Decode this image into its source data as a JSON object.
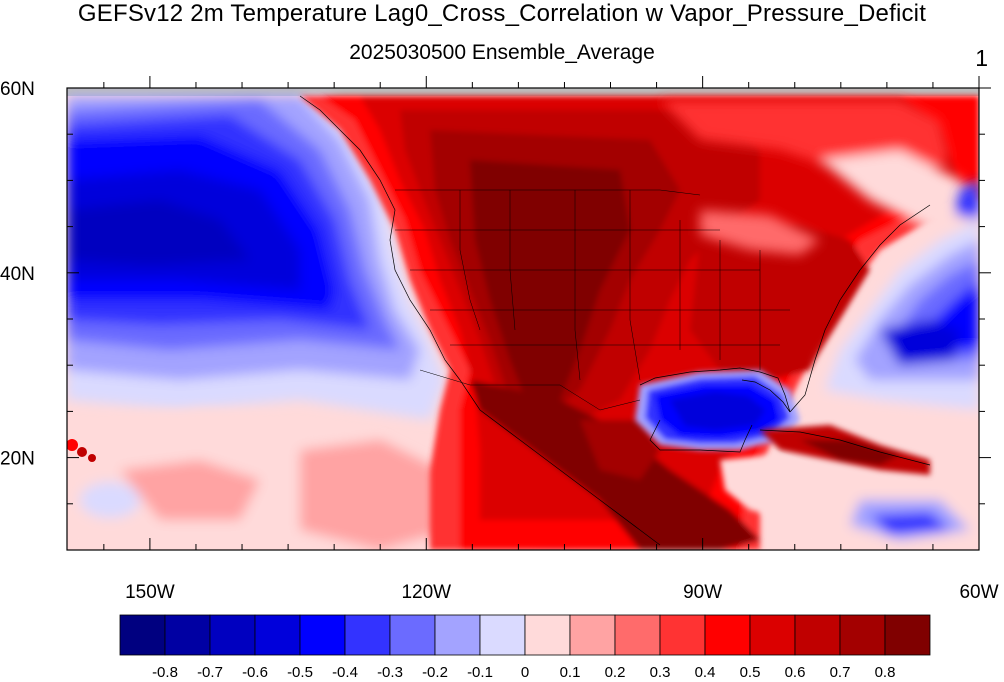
{
  "title": "GEFSv12 2m Temperature Lag0_Cross_Correlation w Vapor_Pressure_Deficit",
  "subtitle": "2025030500 Ensemble_Average",
  "right_label": "1",
  "map": {
    "lon_ticks": [
      {
        "value": -150,
        "label": "150W"
      },
      {
        "value": -120,
        "label": "120W"
      },
      {
        "value": -90,
        "label": "90W"
      },
      {
        "value": -60,
        "label": "60W"
      }
    ],
    "lat_ticks": [
      {
        "value": 60,
        "label": "60N"
      },
      {
        "value": 40,
        "label": "40N"
      },
      {
        "value": 20,
        "label": "20N"
      }
    ],
    "lon_range": [
      -159,
      -60
    ],
    "lat_range": [
      10,
      60
    ]
  },
  "colorbar": {
    "colors": [
      "#000080",
      "#0000a3",
      "#0000c0",
      "#0000db",
      "#0000ff",
      "#3333ff",
      "#6b6bff",
      "#a3a3ff",
      "#dadaff",
      "#ffdada",
      "#ffa3a3",
      "#ff6b6b",
      "#ff3333",
      "#ff0000",
      "#db0000",
      "#c00000",
      "#a30000",
      "#800000"
    ],
    "labels": [
      "-0.8",
      "-0.7",
      "-0.6",
      "-0.5",
      "-0.4",
      "-0.3",
      "-0.2",
      "-0.1",
      "0",
      "0.1",
      "0.2",
      "0.3",
      "0.4",
      "0.5",
      "0.6",
      "0.7",
      "0.8"
    ]
  }
}
